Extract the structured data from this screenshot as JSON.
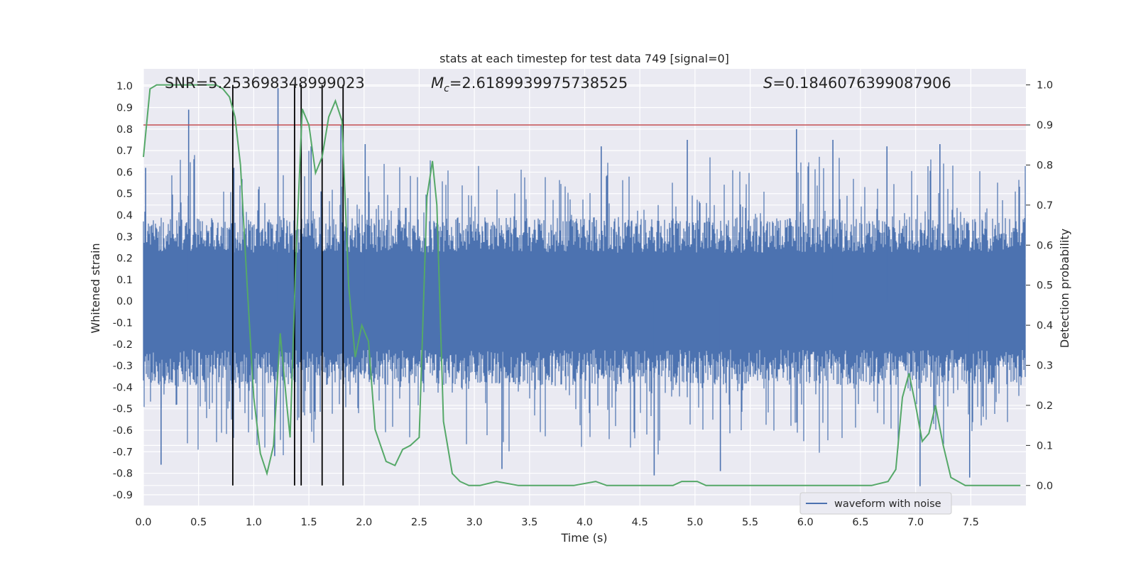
{
  "chart_data": {
    "type": "line",
    "title": "stats at each timestep for test data 749 [signal=0]",
    "xlabel": "Time (s)",
    "ylabel_left": "Whitened strain",
    "ylabel_right": "Detection probability",
    "xlim": [
      0.0,
      8.0
    ],
    "ylim_left": [
      -0.95,
      1.08
    ],
    "ylim_right": [
      -0.05,
      1.04
    ],
    "x_ticks": [
      "0.0",
      "0.5",
      "1.0",
      "1.5",
      "2.0",
      "2.5",
      "3.0",
      "3.5",
      "4.0",
      "4.5",
      "5.0",
      "5.5",
      "6.0",
      "6.5",
      "7.0",
      "7.5"
    ],
    "y_ticks_left": [
      "1.0",
      "0.9",
      "0.8",
      "0.7",
      "0.6",
      "0.5",
      "0.4",
      "0.3",
      "0.2",
      "0.1",
      "0.0",
      "-0.1",
      "-0.2",
      "-0.3",
      "-0.4",
      "-0.5",
      "-0.6",
      "-0.7",
      "-0.8",
      "-0.9"
    ],
    "y_ticks_right": [
      "1.0",
      "0.9",
      "0.8",
      "0.7",
      "0.6",
      "0.5",
      "0.4",
      "0.3",
      "0.2",
      "0.1",
      "0.0"
    ],
    "grid": true,
    "legend": {
      "entries": [
        "waveform with noise"
      ],
      "placement": "lower-right"
    },
    "annotations": {
      "snr": "SNR=5.253698348999023",
      "mc_symbol": "M",
      "mc_sub": "c",
      "mc_value": "=2.6189939975738525",
      "s_symbol": "S",
      "s_value": "=0.1846076399087906"
    },
    "threshold_probability": 0.9,
    "vertical_markers_s": [
      0.81,
      1.37,
      1.43,
      1.62,
      1.81
    ],
    "waveform": {
      "name": "waveform with noise",
      "typical_envelope": 0.3,
      "spikes": [
        {
          "t": 0.02,
          "v": 0.62
        },
        {
          "t": 0.16,
          "v": -0.76
        },
        {
          "t": 0.41,
          "v": 0.89
        },
        {
          "t": 0.82,
          "v": 0.62
        },
        {
          "t": 1.22,
          "v": 0.99
        },
        {
          "t": 1.19,
          "v": -0.72
        },
        {
          "t": 1.52,
          "v": 0.72
        },
        {
          "t": 1.61,
          "v": 0.51
        },
        {
          "t": 1.79,
          "v": 0.82
        },
        {
          "t": 2.01,
          "v": 0.73
        },
        {
          "t": 3.25,
          "v": -0.78
        },
        {
          "t": 4.15,
          "v": 0.72
        },
        {
          "t": 4.63,
          "v": -0.81
        },
        {
          "t": 4.93,
          "v": 0.75
        },
        {
          "t": 5.23,
          "v": -0.79
        },
        {
          "t": 5.92,
          "v": 0.8
        },
        {
          "t": 6.25,
          "v": 0.75
        },
        {
          "t": 6.74,
          "v": 0.72
        },
        {
          "t": 7.04,
          "v": -0.86
        },
        {
          "t": 7.22,
          "v": 0.73
        },
        {
          "t": 7.49,
          "v": -0.82
        }
      ]
    },
    "probability": {
      "color": "#55a868",
      "x": [
        0.0,
        0.06,
        0.12,
        0.2,
        0.3,
        0.4,
        0.5,
        0.6,
        0.66,
        0.72,
        0.78,
        0.83,
        0.88,
        0.94,
        1.0,
        1.06,
        1.12,
        1.18,
        1.24,
        1.3,
        1.33,
        1.38,
        1.44,
        1.5,
        1.56,
        1.62,
        1.68,
        1.74,
        1.8,
        1.86,
        1.92,
        1.98,
        2.04,
        2.1,
        2.2,
        2.28,
        2.35,
        2.42,
        2.5,
        2.57,
        2.62,
        2.66,
        2.72,
        2.8,
        2.87,
        2.95,
        3.05,
        3.2,
        3.4,
        3.6,
        3.9,
        4.1,
        4.2,
        4.5,
        4.8,
        4.88,
        4.95,
        5.02,
        5.1,
        5.3,
        5.5,
        6.0,
        6.15,
        6.3,
        6.6,
        6.75,
        6.82,
        6.88,
        6.94,
        7.0,
        7.06,
        7.12,
        7.18,
        7.25,
        7.32,
        7.45,
        7.6,
        7.85,
        7.95
      ],
      "y": [
        0.82,
        0.99,
        1.0,
        1.0,
        1.0,
        1.0,
        1.0,
        1.0,
        1.0,
        0.99,
        0.97,
        0.92,
        0.8,
        0.5,
        0.22,
        0.08,
        0.03,
        0.1,
        0.38,
        0.2,
        0.12,
        0.55,
        0.94,
        0.9,
        0.78,
        0.82,
        0.92,
        0.96,
        0.91,
        0.5,
        0.32,
        0.4,
        0.36,
        0.14,
        0.06,
        0.05,
        0.09,
        0.1,
        0.12,
        0.72,
        0.81,
        0.7,
        0.16,
        0.03,
        0.01,
        0.0,
        0.0,
        0.01,
        0.0,
        0.0,
        0.0,
        0.01,
        0.0,
        0.0,
        0.0,
        0.01,
        0.01,
        0.01,
        0.0,
        0.0,
        0.0,
        0.0,
        0.0,
        0.0,
        0.0,
        0.01,
        0.04,
        0.22,
        0.28,
        0.2,
        0.11,
        0.13,
        0.2,
        0.1,
        0.02,
        0.0,
        0.0,
        0.0,
        0.0
      ]
    }
  }
}
